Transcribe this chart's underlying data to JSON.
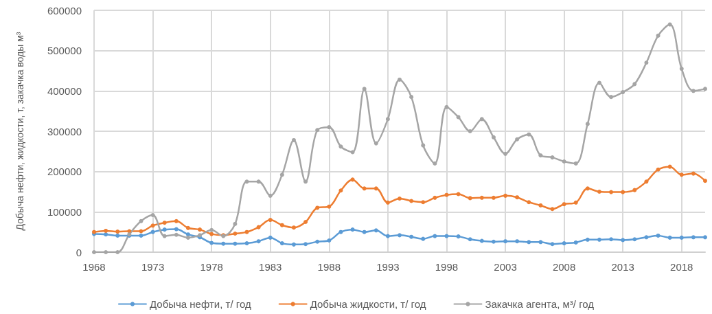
{
  "chart_data": {
    "type": "line",
    "ylabel": "Добыча нефти, жидкости, т, закачка воды м³",
    "categories": [
      "1968",
      null,
      null,
      null,
      null,
      "1973",
      null,
      null,
      null,
      null,
      "1978",
      null,
      null,
      null,
      null,
      "1983",
      null,
      null,
      null,
      null,
      "1988",
      null,
      null,
      null,
      null,
      "1993",
      null,
      null,
      null,
      null,
      "1998",
      null,
      null,
      null,
      null,
      "2003",
      null,
      null,
      null,
      null,
      "2008",
      null,
      null,
      null,
      null,
      "2013",
      null,
      null,
      null,
      null,
      "2018",
      null,
      null
    ],
    "series": [
      {
        "name": "Добыча нефти, т/ год",
        "color": "#5b9bd5",
        "values": [
          45000,
          44000,
          41000,
          41000,
          41000,
          50000,
          56000,
          57000,
          44000,
          37000,
          23000,
          21000,
          21000,
          22000,
          27000,
          36000,
          22000,
          19000,
          20000,
          26000,
          29000,
          50000,
          56000,
          50000,
          54000,
          40000,
          42000,
          38000,
          33000,
          40000,
          40000,
          39000,
          32000,
          28000,
          26000,
          27000,
          27000,
          25000,
          25000,
          20000,
          22000,
          24000,
          31000,
          31000,
          32000,
          30000,
          32000,
          37000,
          41000,
          36000,
          36000,
          37000,
          37000
        ]
      },
      {
        "name": "Добыча жидкости, т/ год",
        "color": "#ed7d31",
        "values": [
          50000,
          53000,
          51000,
          52000,
          52000,
          66000,
          73000,
          77000,
          60000,
          56000,
          45000,
          42000,
          46000,
          50000,
          62000,
          80000,
          67000,
          61000,
          75000,
          110000,
          113000,
          153000,
          180000,
          158000,
          158000,
          123000,
          133000,
          127000,
          124000,
          135000,
          142000,
          144000,
          134000,
          135000,
          135000,
          140000,
          136000,
          124000,
          116000,
          107000,
          119000,
          123000,
          158000,
          150000,
          149000,
          149000,
          154000,
          175000,
          205000,
          212000,
          192000,
          195000,
          177000
        ]
      },
      {
        "name": "Закачка агента, м³/ год",
        "color": "#a5a5a5",
        "values": [
          0,
          0,
          0,
          44000,
          77000,
          92000,
          40000,
          43000,
          36000,
          42000,
          55000,
          40000,
          70000,
          175000,
          175000,
          140000,
          192000,
          278000,
          175000,
          303000,
          310000,
          262000,
          248000,
          405000,
          270000,
          330000,
          428000,
          385000,
          265000,
          220000,
          360000,
          335000,
          300000,
          330000,
          285000,
          244000,
          280000,
          292000,
          240000,
          235000,
          225000,
          220000,
          318000,
          420000,
          385000,
          397000,
          417000,
          470000,
          537000,
          565000,
          455000,
          400000,
          405000
        ]
      }
    ],
    "ylim": [
      0,
      600000
    ],
    "yticks": [
      0,
      100000,
      200000,
      300000,
      400000,
      500000,
      600000
    ],
    "grid": true,
    "legend": "bottom",
    "marker": "circle",
    "line_style": "solid"
  }
}
